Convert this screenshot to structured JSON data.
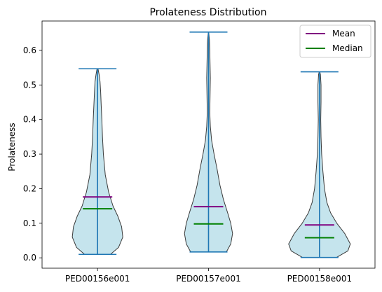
{
  "chart_data": {
    "type": "violin",
    "title": "Prolateness Distribution",
    "xlabel": "",
    "ylabel": "Prolateness",
    "ylim": [
      -0.03,
      0.685
    ],
    "yticks": [
      "0.0",
      "0.1",
      "0.2",
      "0.3",
      "0.4",
      "0.5",
      "0.6"
    ],
    "grid": false,
    "legend_position": "top-right",
    "categories": [
      "PED00156e001",
      "PED00157e001",
      "PED00158e001"
    ],
    "legend": [
      {
        "label": "Mean",
        "color": "#800080"
      },
      {
        "label": "Median",
        "color": "#008000"
      }
    ],
    "colors": {
      "violin_fill": "#add8e6",
      "violin_edge": "#3a3a3a",
      "extrema": "#1f77b4",
      "mean": "#800080",
      "median": "#008000"
    },
    "violins": [
      {
        "name": "PED00156e001",
        "min": 0.01,
        "max": 0.547,
        "mean": 0.176,
        "median": 0.142,
        "profile": [
          [
            0.01,
            0.42
          ],
          [
            0.03,
            0.68
          ],
          [
            0.06,
            0.82
          ],
          [
            0.09,
            0.78
          ],
          [
            0.12,
            0.66
          ],
          [
            0.15,
            0.5
          ],
          [
            0.19,
            0.36
          ],
          [
            0.24,
            0.25
          ],
          [
            0.3,
            0.19
          ],
          [
            0.35,
            0.16
          ],
          [
            0.4,
            0.14
          ],
          [
            0.44,
            0.12
          ],
          [
            0.48,
            0.1
          ],
          [
            0.51,
            0.08
          ],
          [
            0.53,
            0.05
          ],
          [
            0.545,
            0.02
          ]
        ]
      },
      {
        "name": "PED00157e001",
        "min": 0.017,
        "max": 0.653,
        "mean": 0.148,
        "median": 0.098,
        "profile": [
          [
            0.017,
            0.58
          ],
          [
            0.04,
            0.72
          ],
          [
            0.07,
            0.78
          ],
          [
            0.1,
            0.72
          ],
          [
            0.13,
            0.62
          ],
          [
            0.17,
            0.48
          ],
          [
            0.21,
            0.37
          ],
          [
            0.26,
            0.27
          ],
          [
            0.3,
            0.18
          ],
          [
            0.34,
            0.1
          ],
          [
            0.38,
            0.06
          ],
          [
            0.42,
            0.04
          ],
          [
            0.47,
            0.05
          ],
          [
            0.52,
            0.06
          ],
          [
            0.56,
            0.05
          ],
          [
            0.6,
            0.04
          ],
          [
            0.63,
            0.03
          ],
          [
            0.65,
            0.01
          ]
        ]
      },
      {
        "name": "PED00158e001",
        "min": 0.001,
        "max": 0.538,
        "mean": 0.095,
        "median": 0.058,
        "profile": [
          [
            0.001,
            0.55
          ],
          [
            0.02,
            0.92
          ],
          [
            0.04,
            1.0
          ],
          [
            0.07,
            0.82
          ],
          [
            0.1,
            0.56
          ],
          [
            0.13,
            0.36
          ],
          [
            0.16,
            0.24
          ],
          [
            0.2,
            0.16
          ],
          [
            0.25,
            0.11
          ],
          [
            0.3,
            0.07
          ],
          [
            0.35,
            0.05
          ],
          [
            0.4,
            0.04
          ],
          [
            0.45,
            0.05
          ],
          [
            0.5,
            0.05
          ],
          [
            0.53,
            0.03
          ],
          [
            0.538,
            0.01
          ]
        ]
      }
    ]
  }
}
